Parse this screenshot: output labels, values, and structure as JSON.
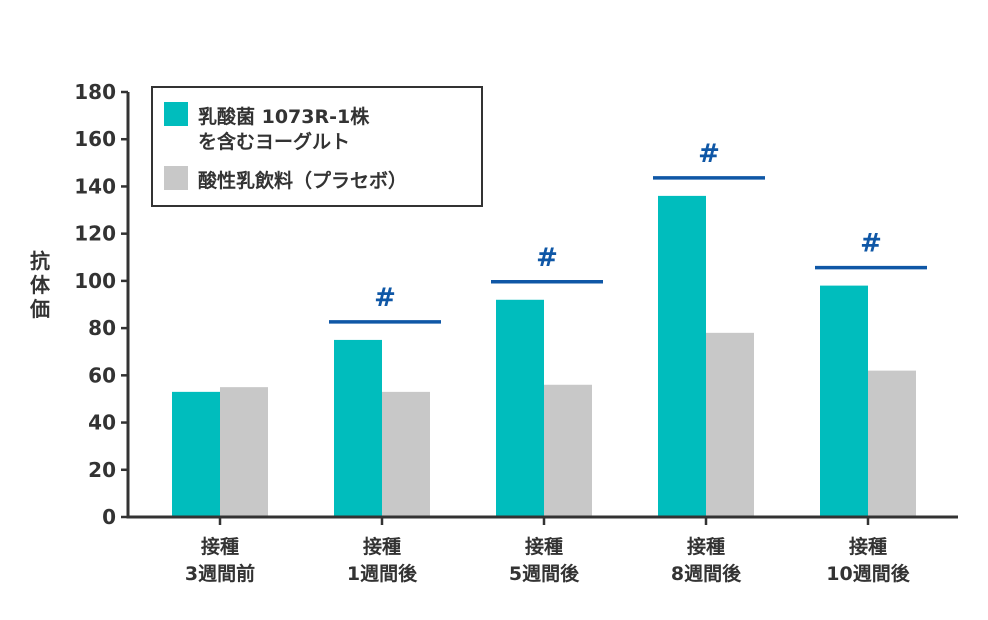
{
  "chart_data": {
    "type": "bar",
    "ylabel": "抗体価",
    "ylim": [
      0,
      180
    ],
    "yticks": [
      0,
      20,
      40,
      60,
      80,
      100,
      120,
      140,
      160,
      180
    ],
    "categories": [
      [
        "接種",
        "3週間前"
      ],
      [
        "接種",
        "1週間後"
      ],
      [
        "接種",
        "5週間後"
      ],
      [
        "接種",
        "8週間後"
      ],
      [
        "接種",
        "10週間後"
      ]
    ],
    "series": [
      {
        "name": "乳酸菌 1073R-1株 を含むヨーグルト",
        "legend_lines": [
          "乳酸菌 1073R-1株",
          "を含むヨーグルト"
        ],
        "color": "#00BDBD",
        "values": [
          53,
          75,
          92,
          136,
          98
        ]
      },
      {
        "name": "酸性乳飲料（プラセボ）",
        "legend_lines": [
          "酸性乳飲料（プラセボ）"
        ],
        "color": "#C8C8C8",
        "values": [
          55,
          53,
          56,
          78,
          62
        ]
      }
    ],
    "significance": {
      "symbol": "#",
      "color": "#0F57A6",
      "categories": [
        1,
        2,
        3,
        4
      ]
    },
    "legend_position": "top-left",
    "grid": false
  }
}
